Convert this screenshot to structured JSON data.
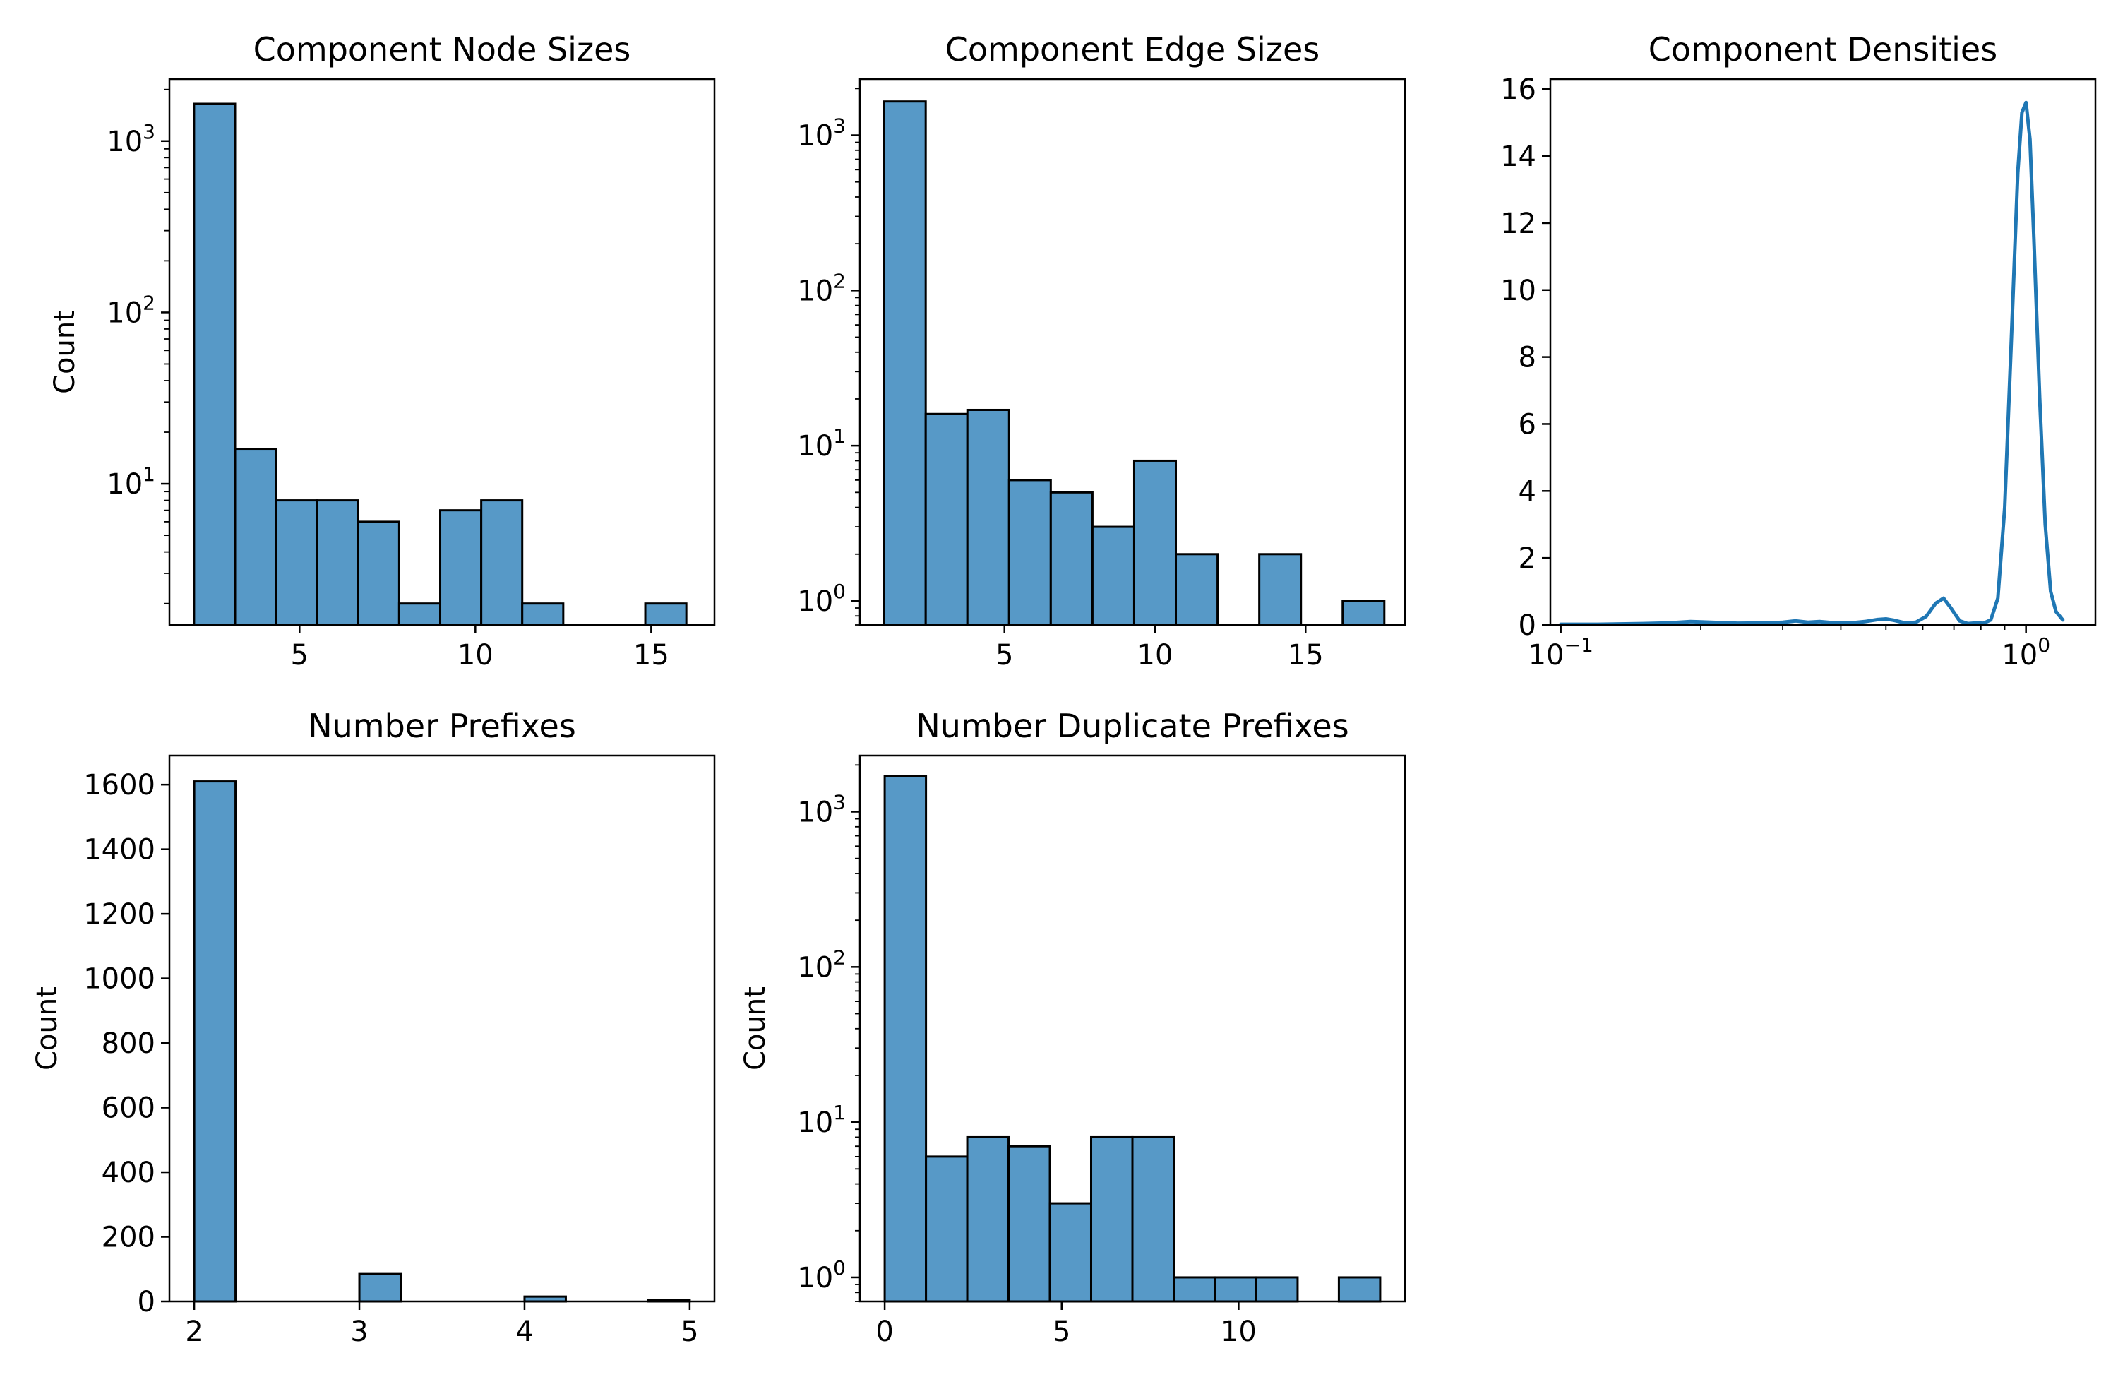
{
  "chart_data": [
    {
      "type": "bar",
      "title": "Component Node Sizes",
      "xlabel": "",
      "ylabel": "Count",
      "yscale": "log",
      "xlim": [
        1.3,
        16.8
      ],
      "ylim": [
        1.5,
        2300
      ],
      "bins": [
        {
          "x0": 2.0,
          "x1": 3.167,
          "count": 1650
        },
        {
          "x0": 3.167,
          "x1": 4.333,
          "count": 16
        },
        {
          "x0": 4.333,
          "x1": 5.5,
          "count": 8
        },
        {
          "x0": 5.5,
          "x1": 6.667,
          "count": 8
        },
        {
          "x0": 6.667,
          "x1": 7.833,
          "count": 6
        },
        {
          "x0": 7.833,
          "x1": 9.0,
          "count": 2
        },
        {
          "x0": 9.0,
          "x1": 10.167,
          "count": 7
        },
        {
          "x0": 10.167,
          "x1": 11.333,
          "count": 8
        },
        {
          "x0": 11.333,
          "x1": 12.5,
          "count": 2
        },
        {
          "x0": 12.5,
          "x1": 13.667,
          "count": 0
        },
        {
          "x0": 13.667,
          "x1": 14.833,
          "count": 0
        },
        {
          "x0": 14.833,
          "x1": 16.0,
          "count": 2
        }
      ],
      "xticks": [
        {
          "value": 5,
          "label": "5"
        },
        {
          "value": 10,
          "label": "10"
        },
        {
          "value": 15,
          "label": "15"
        }
      ],
      "yticks": [
        {
          "value": 10,
          "base": "10",
          "exp": "1"
        },
        {
          "value": 100,
          "base": "10",
          "exp": "2"
        },
        {
          "value": 1000,
          "base": "10",
          "exp": "3"
        }
      ],
      "color": "#5799c7",
      "edge_color": "#000000",
      "grid": false
    },
    {
      "type": "bar",
      "title": "Component Edge Sizes",
      "xlabel": "",
      "ylabel": "",
      "yscale": "log",
      "xlim": [
        0.2,
        18.3
      ],
      "ylim": [
        0.7,
        2300
      ],
      "bins": [
        {
          "x0": 1.0,
          "x1": 2.385,
          "count": 1650
        },
        {
          "x0": 2.385,
          "x1": 3.769,
          "count": 16
        },
        {
          "x0": 3.769,
          "x1": 5.154,
          "count": 17
        },
        {
          "x0": 5.154,
          "x1": 6.538,
          "count": 6
        },
        {
          "x0": 6.538,
          "x1": 7.923,
          "count": 5
        },
        {
          "x0": 7.923,
          "x1": 9.308,
          "count": 3
        },
        {
          "x0": 9.308,
          "x1": 10.692,
          "count": 8
        },
        {
          "x0": 10.692,
          "x1": 12.077,
          "count": 2
        },
        {
          "x0": 12.077,
          "x1": 13.462,
          "count": 0
        },
        {
          "x0": 13.462,
          "x1": 14.846,
          "count": 2
        },
        {
          "x0": 14.846,
          "x1": 16.231,
          "count": 0
        },
        {
          "x0": 16.231,
          "x1": 17.615,
          "count": 1
        }
      ],
      "xticks": [
        {
          "value": 5,
          "label": "5"
        },
        {
          "value": 10,
          "label": "10"
        },
        {
          "value": 15,
          "label": "15"
        }
      ],
      "yticks": [
        {
          "value": 1,
          "base": "10",
          "exp": "0"
        },
        {
          "value": 10,
          "base": "10",
          "exp": "1"
        },
        {
          "value": 100,
          "base": "10",
          "exp": "2"
        },
        {
          "value": 1000,
          "base": "10",
          "exp": "3"
        }
      ],
      "color": "#5799c7",
      "edge_color": "#000000",
      "grid": false
    },
    {
      "type": "line",
      "title": "Component Densities",
      "xlabel": "",
      "ylabel": "",
      "xscale": "log",
      "xlim": [
        0.095,
        1.41
      ],
      "ylim": [
        0,
        16.3
      ],
      "series": [
        {
          "x": [
            0.1,
            0.12,
            0.15,
            0.17,
            0.19,
            0.21,
            0.24,
            0.28,
            0.3,
            0.32,
            0.34,
            0.36,
            0.39,
            0.42,
            0.45,
            0.48,
            0.5,
            0.52,
            0.55,
            0.58,
            0.61,
            0.64,
            0.665,
            0.69,
            0.72,
            0.75,
            0.78,
            0.81,
            0.84,
            0.87,
            0.9,
            0.93,
            0.96,
            0.98,
            1.0,
            1.02,
            1.04,
            1.07,
            1.1,
            1.13,
            1.16,
            1.2
          ],
          "y": [
            0.02,
            0.02,
            0.04,
            0.06,
            0.1,
            0.08,
            0.05,
            0.06,
            0.08,
            0.12,
            0.08,
            0.1,
            0.06,
            0.06,
            0.1,
            0.16,
            0.18,
            0.14,
            0.06,
            0.08,
            0.25,
            0.65,
            0.8,
            0.5,
            0.12,
            0.04,
            0.06,
            0.05,
            0.15,
            0.8,
            3.5,
            8.5,
            13.5,
            15.3,
            15.6,
            14.5,
            11.5,
            6.8,
            3.0,
            1.0,
            0.4,
            0.15
          ]
        }
      ],
      "xticks": [
        {
          "value": 0.1,
          "base": "10",
          "exp": "−1"
        },
        {
          "value": 1,
          "base": "10",
          "exp": "0"
        }
      ],
      "yticks": [
        {
          "value": 0,
          "label": "0"
        },
        {
          "value": 2,
          "label": "2"
        },
        {
          "value": 4,
          "label": "4"
        },
        {
          "value": 6,
          "label": "6"
        },
        {
          "value": 8,
          "label": "8"
        },
        {
          "value": 10,
          "label": "10"
        },
        {
          "value": 12,
          "label": "12"
        },
        {
          "value": 14,
          "label": "14"
        },
        {
          "value": 16,
          "label": "16"
        }
      ],
      "color": "#1f77b4",
      "grid": false
    },
    {
      "type": "bar",
      "title": "Number Prefixes",
      "xlabel": "",
      "ylabel": "Count",
      "yscale": "linear",
      "xlim": [
        1.85,
        5.15
      ],
      "ylim": [
        0,
        1690
      ],
      "bins": [
        {
          "x0": 2.0,
          "x1": 2.25,
          "count": 1610
        },
        {
          "x0": 2.25,
          "x1": 2.5,
          "count": 0
        },
        {
          "x0": 2.5,
          "x1": 2.75,
          "count": 0
        },
        {
          "x0": 2.75,
          "x1": 3.0,
          "count": 0
        },
        {
          "x0": 3.0,
          "x1": 3.25,
          "count": 85
        },
        {
          "x0": 3.25,
          "x1": 3.5,
          "count": 0
        },
        {
          "x0": 3.5,
          "x1": 3.75,
          "count": 0
        },
        {
          "x0": 3.75,
          "x1": 4.0,
          "count": 0
        },
        {
          "x0": 4.0,
          "x1": 4.25,
          "count": 15
        },
        {
          "x0": 4.25,
          "x1": 4.5,
          "count": 0
        },
        {
          "x0": 4.5,
          "x1": 4.75,
          "count": 0
        },
        {
          "x0": 4.75,
          "x1": 5.0,
          "count": 4
        }
      ],
      "xticks": [
        {
          "value": 2,
          "label": "2"
        },
        {
          "value": 3,
          "label": "3"
        },
        {
          "value": 4,
          "label": "4"
        },
        {
          "value": 5,
          "label": "5"
        }
      ],
      "yticks": [
        {
          "value": 0,
          "label": "0"
        },
        {
          "value": 200,
          "label": "200"
        },
        {
          "value": 400,
          "label": "400"
        },
        {
          "value": 600,
          "label": "600"
        },
        {
          "value": 800,
          "label": "800"
        },
        {
          "value": 1000,
          "label": "1000"
        },
        {
          "value": 1200,
          "label": "1200"
        },
        {
          "value": 1400,
          "label": "1400"
        },
        {
          "value": 1600,
          "label": "1600"
        }
      ],
      "color": "#5799c7",
      "edge_color": "#000000",
      "grid": false
    },
    {
      "type": "bar",
      "title": "Number Duplicate Prefixes",
      "xlabel": "",
      "ylabel": "Count",
      "yscale": "log",
      "xlim": [
        -0.7,
        14.7
      ],
      "ylim": [
        0.7,
        2300
      ],
      "bins": [
        {
          "x0": 0.0,
          "x1": 1.167,
          "count": 1700
        },
        {
          "x0": 1.167,
          "x1": 2.333,
          "count": 6
        },
        {
          "x0": 2.333,
          "x1": 3.5,
          "count": 8
        },
        {
          "x0": 3.5,
          "x1": 4.667,
          "count": 7
        },
        {
          "x0": 4.667,
          "x1": 5.833,
          "count": 3
        },
        {
          "x0": 5.833,
          "x1": 7.0,
          "count": 8
        },
        {
          "x0": 7.0,
          "x1": 8.167,
          "count": 8
        },
        {
          "x0": 8.167,
          "x1": 9.333,
          "count": 1
        },
        {
          "x0": 9.333,
          "x1": 10.5,
          "count": 1
        },
        {
          "x0": 10.5,
          "x1": 11.667,
          "count": 1
        },
        {
          "x0": 11.667,
          "x1": 12.833,
          "count": 0
        },
        {
          "x0": 12.833,
          "x1": 14.0,
          "count": 1
        }
      ],
      "xticks": [
        {
          "value": 0,
          "label": "0"
        },
        {
          "value": 5,
          "label": "5"
        },
        {
          "value": 10,
          "label": "10"
        }
      ],
      "yticks": [
        {
          "value": 1,
          "base": "10",
          "exp": "0"
        },
        {
          "value": 10,
          "base": "10",
          "exp": "1"
        },
        {
          "value": 100,
          "base": "10",
          "exp": "2"
        },
        {
          "value": 1000,
          "base": "10",
          "exp": "3"
        }
      ],
      "color": "#5799c7",
      "edge_color": "#000000",
      "grid": false
    }
  ]
}
